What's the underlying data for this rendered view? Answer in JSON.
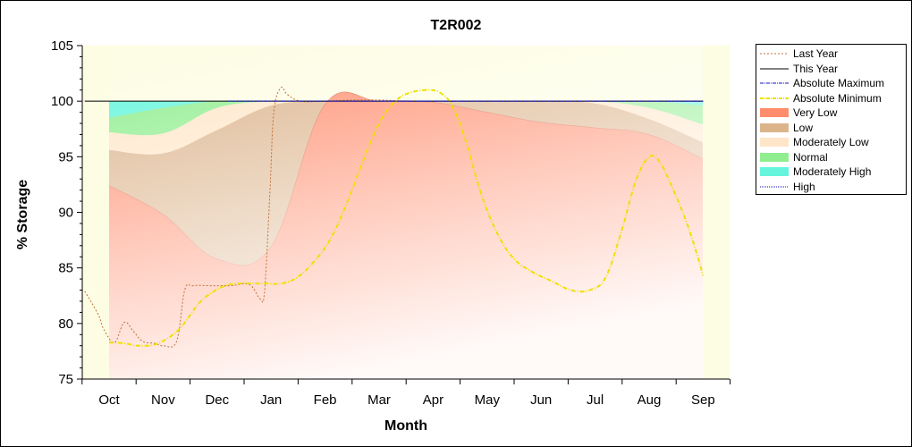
{
  "chart_data": {
    "type": "area",
    "title": "T2R002",
    "xlabel": "Month",
    "ylabel": "% Storage",
    "ylim": [
      75,
      105
    ],
    "yticks": [
      75,
      80,
      85,
      90,
      95,
      100,
      105
    ],
    "categories": [
      "Oct",
      "Nov",
      "Dec",
      "Jan",
      "Feb",
      "Mar",
      "Apr",
      "May",
      "Jun",
      "Jul",
      "Aug",
      "Sep"
    ],
    "legend_position": "right",
    "bands": [
      {
        "name": "Very Low",
        "color": "#ff8c6c",
        "upper": [
          92.4,
          89.8,
          85.8,
          86.9,
          99.7,
          100,
          99.9,
          99.0,
          98.1,
          97.6,
          97.0,
          94.8
        ]
      },
      {
        "name": "Low",
        "color": "#dcb48c",
        "upper": [
          95.6,
          95.3,
          97.4,
          99.6,
          100,
          100,
          100,
          100,
          100,
          99.8,
          98.4,
          96.3
        ]
      },
      {
        "name": "Moderately Low",
        "color": "#ffe6c8",
        "upper": [
          97.2,
          97.1,
          99.4,
          100,
          100,
          100,
          100,
          100,
          100,
          100,
          99.4,
          97.9
        ]
      },
      {
        "name": "Normal",
        "color": "#90ee90",
        "upper": [
          98.5,
          99.4,
          100,
          100,
          100,
          100,
          100,
          100,
          100,
          100,
          100,
          99.6
        ]
      },
      {
        "name": "Moderately High",
        "color": "#66f5dc",
        "upper": [
          100,
          100,
          100,
          100,
          100,
          100,
          100,
          100,
          100,
          100,
          100,
          100
        ]
      }
    ],
    "series": [
      {
        "name": "Last Year",
        "color": "#c0703a",
        "style": "dotted",
        "x": [
          -0.45,
          -0.2,
          -0.1,
          0.1,
          0.28,
          0.45,
          0.62,
          0.85,
          1.0,
          1.25,
          1.4,
          1.55,
          1.9,
          2.25,
          2.6,
          2.8,
          2.88,
          2.98,
          3.05,
          3.18,
          3.3,
          3.55,
          4.0,
          4.5,
          5.0,
          5.5,
          6.0,
          7.0,
          8.0,
          9.0,
          10.0,
          11.0
        ],
        "values": [
          82.9,
          80.8,
          79.5,
          78.3,
          80.1,
          79.3,
          78.4,
          78.2,
          78.0,
          78.4,
          83.0,
          83.4,
          83.4,
          83.4,
          83.5,
          82.2,
          83.0,
          92.0,
          99.0,
          101.2,
          100.6,
          100.0,
          100.0,
          100.1,
          100.1,
          100.0,
          100.0,
          100.0,
          100.0,
          100.0,
          100.0,
          100.0
        ]
      },
      {
        "name": "This Year",
        "color": "#000000",
        "style": "solid",
        "x": [
          -0.45,
          11.0
        ],
        "values": [
          100.0,
          100.0
        ]
      },
      {
        "name": "Absolute Maximum",
        "color": "#1010c0",
        "style": "dash-dot",
        "x": [
          2.2,
          11.0
        ],
        "values": [
          100.0,
          100.0
        ]
      },
      {
        "name": "Absolute Minimum",
        "color": "#f0e000",
        "style": "dash-dot",
        "x": [
          0.0,
          0.3,
          0.55,
          0.9,
          1.3,
          1.7,
          2.1,
          2.4,
          2.7,
          2.9,
          3.2,
          3.5,
          3.8,
          4.1,
          4.4,
          4.7,
          5.0,
          5.3,
          5.6,
          5.95,
          6.15,
          6.35,
          6.6,
          6.9,
          7.2,
          7.5,
          7.85,
          8.2,
          8.55,
          8.9,
          9.2,
          9.5,
          9.75,
          10.0,
          10.2,
          10.45,
          10.7,
          10.9,
          11.0
        ],
        "values": [
          78.3,
          78.2,
          78.0,
          78.2,
          79.5,
          82.0,
          83.3,
          83.6,
          83.6,
          83.6,
          83.6,
          84.2,
          85.6,
          87.6,
          90.8,
          94.6,
          98.0,
          100.0,
          100.8,
          101.0,
          100.7,
          99.6,
          96.5,
          91.5,
          88.0,
          85.8,
          84.6,
          83.8,
          83.0,
          83.0,
          84.2,
          88.5,
          92.8,
          95.0,
          94.5,
          92.0,
          89.0,
          86.0,
          84.3
        ]
      },
      {
        "name": "High",
        "color": "#1010c0",
        "style": "dotted",
        "x": [
          2.3,
          11.0
        ],
        "values": [
          100.0,
          100.0
        ]
      }
    ]
  },
  "legend": {
    "items": [
      {
        "label": "Last Year",
        "kind": "line",
        "color": "#c0703a",
        "dash": "2,2",
        "width": 1
      },
      {
        "label": "This Year",
        "kind": "line",
        "color": "#000000",
        "dash": "",
        "width": 1
      },
      {
        "label": "Absolute Maximum",
        "kind": "line",
        "color": "#1010c0",
        "dash": "4,1,1,1",
        "width": 1
      },
      {
        "label": "Absolute Minimum",
        "kind": "line",
        "color": "#f0e000",
        "dash": "4,1,1,1",
        "width": 2
      },
      {
        "label": "Very Low",
        "kind": "area",
        "color": "#ff8c6c",
        "dash": "",
        "width": 1
      },
      {
        "label": "Low",
        "kind": "area",
        "color": "#dcb48c",
        "dash": "",
        "width": 1
      },
      {
        "label": "Moderately Low",
        "kind": "area",
        "color": "#ffe6c8",
        "dash": "",
        "width": 1
      },
      {
        "label": "Normal",
        "kind": "area",
        "color": "#90ee90",
        "dash": "",
        "width": 1
      },
      {
        "label": "Moderately High",
        "kind": "area",
        "color": "#66f5dc",
        "dash": "",
        "width": 1
      },
      {
        "label": "High",
        "kind": "line",
        "color": "#1010c0",
        "dash": "1,1",
        "width": 1
      }
    ]
  }
}
